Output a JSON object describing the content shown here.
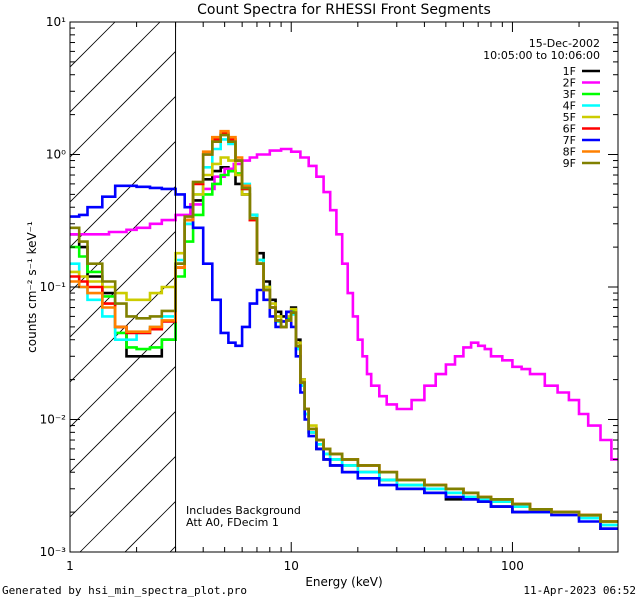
{
  "chart_data": {
    "type": "line",
    "title": "Count Spectra for RHESSI Front Segments",
    "xlabel": "Energy (keV)",
    "ylabel": "counts cm⁻² s⁻¹ keV⁻¹",
    "xscale": "log",
    "yscale": "log",
    "xlim": [
      1,
      300
    ],
    "ylim": [
      0.001,
      10
    ],
    "x_tick_labels": [
      "1",
      "10",
      "100"
    ],
    "y_tick_labels": [
      "10⁻³",
      "10⁻²",
      "10⁻¹",
      "10⁰",
      "10¹"
    ],
    "date_label": "15-Dec-2002",
    "time_label": "10:05:00 to 10:06:00",
    "note_lines": [
      "Includes Background",
      "Att A0, FDecim 1"
    ],
    "shaded_region_xlim": [
      1,
      3
    ],
    "legend_position": "top-right",
    "series": [
      {
        "name": "1F",
        "color": "#000000",
        "x": [
          1.0,
          1.1,
          1.2,
          1.4,
          1.6,
          1.8,
          2.0,
          2.3,
          2.6,
          3.0,
          3.3,
          3.6,
          4.0,
          4.4,
          4.8,
          5.2,
          5.6,
          6.0,
          6.5,
          7.0,
          7.5,
          8.0,
          8.5,
          9.0,
          9.5,
          10.0,
          10.5,
          11.0,
          11.5,
          12.0,
          13.0,
          14.0,
          15.0,
          17.0,
          20.0,
          25.0,
          30.0,
          40.0,
          50.0,
          60.0,
          70.0,
          80.0,
          100.0,
          120.0,
          150.0,
          200.0,
          250.0
        ],
        "y": [
          0.25,
          0.2,
          0.12,
          0.09,
          0.05,
          0.03,
          0.03,
          0.03,
          0.04,
          0.15,
          0.3,
          0.45,
          0.65,
          0.75,
          0.8,
          0.75,
          0.6,
          0.5,
          0.35,
          0.18,
          0.11,
          0.08,
          0.065,
          0.06,
          0.065,
          0.07,
          0.04,
          0.02,
          0.012,
          0.008,
          0.006,
          0.005,
          0.0045,
          0.004,
          0.004,
          0.0035,
          0.003,
          0.0028,
          0.0025,
          0.0025,
          0.0024,
          0.0022,
          0.002,
          0.002,
          0.002,
          0.0018,
          0.0015
        ]
      },
      {
        "name": "2F",
        "color": "#ff00ff",
        "x": [
          1.0,
          1.2,
          1.5,
          1.8,
          2.0,
          2.3,
          2.6,
          3.0,
          3.5,
          4.0,
          4.5,
          5.0,
          5.5,
          6.0,
          6.5,
          7.0,
          8.0,
          9.0,
          10.0,
          11.0,
          12.0,
          13.0,
          14.0,
          15.0,
          16.0,
          17.0,
          18.0,
          19.0,
          20.0,
          21.0,
          22.0,
          23.0,
          25.0,
          27.0,
          30.0,
          35.0,
          40.0,
          45.0,
          50.0,
          55.0,
          60.0,
          65.0,
          70.0,
          75.0,
          80.0,
          90.0,
          100.0,
          110.0,
          120.0,
          140.0,
          160.0,
          180.0,
          200.0,
          220.0,
          250.0,
          280.0
        ],
        "y": [
          0.25,
          0.25,
          0.26,
          0.27,
          0.28,
          0.3,
          0.32,
          0.35,
          0.42,
          0.55,
          0.68,
          0.78,
          0.85,
          0.9,
          0.95,
          1.0,
          1.07,
          1.1,
          1.05,
          0.95,
          0.82,
          0.68,
          0.52,
          0.38,
          0.25,
          0.15,
          0.09,
          0.06,
          0.04,
          0.03,
          0.022,
          0.018,
          0.015,
          0.013,
          0.012,
          0.014,
          0.018,
          0.022,
          0.026,
          0.03,
          0.035,
          0.038,
          0.036,
          0.034,
          0.03,
          0.028,
          0.025,
          0.024,
          0.022,
          0.018,
          0.016,
          0.014,
          0.011,
          0.009,
          0.007,
          0.005
        ]
      },
      {
        "name": "3F",
        "color": "#00ff00",
        "x": [
          1.0,
          1.1,
          1.2,
          1.4,
          1.6,
          1.8,
          2.0,
          2.3,
          2.6,
          3.0,
          3.3,
          3.6,
          4.0,
          4.4,
          4.8,
          5.2,
          5.6,
          6.0,
          6.5,
          7.0,
          7.5,
          8.0,
          8.5,
          9.0,
          9.5,
          10.0,
          10.5,
          11.0,
          11.5,
          12.0,
          13.0,
          14.0,
          15.0,
          17.0,
          20.0,
          25.0,
          30.0,
          40.0,
          50.0,
          60.0,
          70.0,
          80.0,
          100.0,
          120.0,
          150.0,
          200.0,
          250.0
        ],
        "y": [
          0.2,
          0.17,
          0.13,
          0.085,
          0.045,
          0.035,
          0.034,
          0.035,
          0.04,
          0.12,
          0.22,
          0.35,
          0.5,
          0.6,
          0.7,
          0.75,
          0.72,
          0.55,
          0.35,
          0.16,
          0.1,
          0.07,
          0.055,
          0.05,
          0.058,
          0.065,
          0.035,
          0.018,
          0.011,
          0.008,
          0.0065,
          0.0055,
          0.005,
          0.0045,
          0.004,
          0.0035,
          0.0032,
          0.003,
          0.0028,
          0.0026,
          0.0025,
          0.0024,
          0.0022,
          0.002,
          0.002,
          0.0018,
          0.0016
        ]
      },
      {
        "name": "4F",
        "color": "#00ffff",
        "x": [
          1.0,
          1.1,
          1.2,
          1.4,
          1.6,
          1.8,
          2.0,
          2.3,
          2.6,
          3.0,
          3.3,
          3.6,
          4.0,
          4.4,
          4.8,
          5.2,
          5.6,
          6.0,
          6.5,
          7.0,
          7.5,
          8.0,
          8.5,
          9.0,
          9.5,
          10.0,
          10.5,
          11.0,
          11.5,
          12.0,
          13.0,
          14.0,
          15.0,
          17.0,
          20.0,
          25.0,
          30.0,
          40.0,
          50.0,
          60.0,
          70.0,
          80.0,
          100.0,
          120.0,
          150.0,
          200.0,
          250.0
        ],
        "y": [
          0.15,
          0.1,
          0.08,
          0.06,
          0.04,
          0.04,
          0.045,
          0.05,
          0.06,
          0.16,
          0.3,
          0.5,
          0.8,
          1.1,
          1.3,
          1.2,
          0.9,
          0.6,
          0.35,
          0.16,
          0.1,
          0.07,
          0.055,
          0.05,
          0.056,
          0.062,
          0.034,
          0.018,
          0.011,
          0.008,
          0.0065,
          0.0055,
          0.005,
          0.0045,
          0.004,
          0.0035,
          0.0032,
          0.003,
          0.0028,
          0.0026,
          0.0025,
          0.0024,
          0.0022,
          0.002,
          0.002,
          0.0018,
          0.0016
        ]
      },
      {
        "name": "5F",
        "color": "#cccc00",
        "x": [
          1.0,
          1.1,
          1.2,
          1.4,
          1.6,
          1.8,
          2.0,
          2.3,
          2.6,
          3.0,
          3.3,
          3.6,
          4.0,
          4.4,
          4.8,
          5.2,
          5.6,
          6.0,
          6.5,
          7.0,
          7.5,
          8.0,
          8.5,
          9.0,
          9.5,
          10.0,
          10.5,
          11.0,
          11.5,
          12.0,
          13.0,
          14.0,
          15.0,
          17.0,
          20.0,
          25.0,
          30.0,
          40.0,
          50.0,
          60.0,
          70.0,
          80.0,
          100.0,
          120.0,
          150.0,
          200.0,
          250.0
        ],
        "y": [
          0.13,
          0.12,
          0.11,
          0.1,
          0.09,
          0.08,
          0.08,
          0.09,
          0.1,
          0.18,
          0.32,
          0.5,
          0.7,
          0.85,
          0.95,
          0.9,
          0.7,
          0.5,
          0.32,
          0.15,
          0.1,
          0.075,
          0.06,
          0.055,
          0.06,
          0.068,
          0.038,
          0.02,
          0.012,
          0.009,
          0.007,
          0.006,
          0.0055,
          0.005,
          0.0045,
          0.004,
          0.0035,
          0.0032,
          0.003,
          0.0028,
          0.0026,
          0.0025,
          0.0023,
          0.0021,
          0.002,
          0.0019,
          0.0017
        ]
      },
      {
        "name": "6F",
        "color": "#ff0000",
        "x": [
          1.0,
          1.1,
          1.2,
          1.4,
          1.6,
          1.8,
          2.0,
          2.3,
          2.6,
          3.0,
          3.3,
          3.6,
          4.0,
          4.4,
          4.8,
          5.2,
          5.6,
          6.0,
          6.5,
          7.0,
          7.5,
          8.0,
          8.5,
          9.0,
          9.5,
          10.0,
          10.5,
          11.0,
          11.5,
          12.0,
          13.0,
          14.0,
          15.0,
          17.0,
          20.0,
          25.0,
          30.0,
          40.0,
          50.0,
          60.0,
          70.0,
          80.0,
          100.0,
          120.0,
          150.0,
          200.0,
          250.0
        ],
        "y": [
          0.12,
          0.11,
          0.1,
          0.075,
          0.05,
          0.045,
          0.045,
          0.048,
          0.055,
          0.14,
          0.32,
          0.6,
          1.0,
          1.3,
          1.45,
          1.3,
          0.9,
          0.55,
          0.32,
          0.15,
          0.095,
          0.07,
          0.056,
          0.05,
          0.056,
          0.064,
          0.036,
          0.019,
          0.012,
          0.0085,
          0.007,
          0.006,
          0.0055,
          0.005,
          0.0045,
          0.004,
          0.0035,
          0.0032,
          0.003,
          0.0028,
          0.0026,
          0.0025,
          0.0023,
          0.0021,
          0.002,
          0.0019,
          0.0017
        ]
      },
      {
        "name": "7F",
        "color": "#0000ff",
        "x": [
          1.0,
          1.1,
          1.2,
          1.4,
          1.6,
          1.8,
          2.0,
          2.3,
          2.6,
          3.0,
          3.3,
          3.6,
          4.0,
          4.4,
          4.8,
          5.2,
          5.6,
          6.0,
          6.5,
          7.0,
          7.5,
          8.0,
          8.5,
          9.0,
          9.5,
          10.0,
          10.5,
          11.0,
          11.5,
          12.0,
          13.0,
          14.0,
          15.0,
          17.0,
          20.0,
          25.0,
          30.0,
          40.0,
          50.0,
          60.0,
          70.0,
          80.0,
          100.0,
          120.0,
          150.0,
          200.0,
          250.0
        ],
        "y": [
          0.34,
          0.35,
          0.4,
          0.48,
          0.58,
          0.58,
          0.57,
          0.56,
          0.55,
          0.5,
          0.4,
          0.28,
          0.15,
          0.08,
          0.045,
          0.038,
          0.036,
          0.05,
          0.075,
          0.095,
          0.08,
          0.06,
          0.05,
          0.055,
          0.065,
          0.05,
          0.03,
          0.016,
          0.01,
          0.0075,
          0.006,
          0.005,
          0.0045,
          0.004,
          0.0036,
          0.0032,
          0.003,
          0.0028,
          0.0026,
          0.0025,
          0.0024,
          0.0022,
          0.002,
          0.002,
          0.0019,
          0.0017,
          0.0015
        ]
      },
      {
        "name": "8F",
        "color": "#ff8000",
        "x": [
          1.0,
          1.1,
          1.2,
          1.4,
          1.6,
          1.8,
          2.0,
          2.3,
          2.6,
          3.0,
          3.3,
          3.6,
          4.0,
          4.4,
          4.8,
          5.2,
          5.6,
          6.0,
          6.5,
          7.0,
          7.5,
          8.0,
          8.5,
          9.0,
          9.5,
          10.0,
          10.5,
          11.0,
          11.5,
          12.0,
          13.0,
          14.0,
          15.0,
          17.0,
          20.0,
          25.0,
          30.0,
          40.0,
          50.0,
          60.0,
          70.0,
          80.0,
          100.0,
          120.0,
          150.0,
          200.0,
          250.0
        ],
        "y": [
          0.11,
          0.1,
          0.09,
          0.07,
          0.05,
          0.046,
          0.046,
          0.05,
          0.056,
          0.14,
          0.32,
          0.62,
          1.05,
          1.35,
          1.5,
          1.35,
          0.95,
          0.58,
          0.33,
          0.15,
          0.095,
          0.07,
          0.056,
          0.05,
          0.056,
          0.064,
          0.036,
          0.019,
          0.012,
          0.0085,
          0.007,
          0.006,
          0.0055,
          0.005,
          0.0045,
          0.004,
          0.0035,
          0.0032,
          0.003,
          0.0028,
          0.0026,
          0.0025,
          0.0023,
          0.0021,
          0.002,
          0.0019,
          0.0017
        ]
      },
      {
        "name": "9F",
        "color": "#808000",
        "x": [
          1.0,
          1.1,
          1.2,
          1.4,
          1.6,
          1.8,
          2.0,
          2.3,
          2.6,
          3.0,
          3.3,
          3.6,
          4.0,
          4.4,
          4.8,
          5.2,
          5.6,
          6.0,
          6.5,
          7.0,
          7.5,
          8.0,
          8.5,
          9.0,
          9.5,
          10.0,
          10.5,
          11.0,
          11.5,
          12.0,
          13.0,
          14.0,
          15.0,
          17.0,
          20.0,
          25.0,
          30.0,
          40.0,
          50.0,
          60.0,
          70.0,
          80.0,
          100.0,
          120.0,
          150.0,
          200.0,
          250.0
        ],
        "y": [
          0.28,
          0.22,
          0.15,
          0.11,
          0.075,
          0.06,
          0.058,
          0.06,
          0.066,
          0.15,
          0.34,
          0.62,
          1.0,
          1.25,
          1.4,
          1.25,
          0.9,
          0.56,
          0.33,
          0.15,
          0.095,
          0.07,
          0.056,
          0.05,
          0.056,
          0.064,
          0.036,
          0.019,
          0.012,
          0.0085,
          0.007,
          0.006,
          0.0055,
          0.005,
          0.0045,
          0.004,
          0.0035,
          0.0032,
          0.003,
          0.0028,
          0.0026,
          0.0025,
          0.0023,
          0.0021,
          0.002,
          0.0019,
          0.0017
        ]
      }
    ]
  },
  "footer": {
    "generated_by": "Generated by hsi_min_spectra_plot.pro",
    "timestamp": "11-Apr-2023 06:52"
  }
}
